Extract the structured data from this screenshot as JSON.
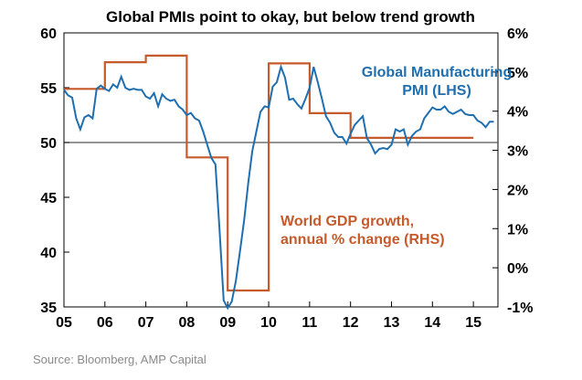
{
  "chart_data": {
    "type": "line",
    "title": "Global PMIs point to okay, but below trend growth",
    "xlabel": "",
    "ylabel_left": "",
    "ylabel_right": "",
    "x_ticks": [
      "05",
      "06",
      "07",
      "08",
      "09",
      "10",
      "11",
      "12",
      "13",
      "14",
      "15"
    ],
    "xlim": [
      2005,
      2015.6
    ],
    "ylim_left": [
      35,
      60
    ],
    "y_ticks_left": [
      "35",
      "40",
      "45",
      "50",
      "55",
      "60"
    ],
    "ylim_right": [
      -1,
      6
    ],
    "y_ticks_right": [
      "-1%",
      "0%",
      "1%",
      "2%",
      "3%",
      "4%",
      "5%",
      "6%"
    ],
    "reference_line_left": 50,
    "grid": false,
    "series": [
      {
        "name": "Global Manufacturing PMI (LHS)",
        "label": "Global Manufacturing\nPMI (LHS)",
        "axis": "left",
        "color": "#1f6fb0",
        "x": [
          2005.0,
          2005.1,
          2005.2,
          2005.3,
          2005.4,
          2005.5,
          2005.6,
          2005.7,
          2005.8,
          2005.9,
          2006.0,
          2006.1,
          2006.2,
          2006.3,
          2006.4,
          2006.5,
          2006.6,
          2006.7,
          2006.8,
          2006.9,
          2007.0,
          2007.1,
          2007.2,
          2007.3,
          2007.4,
          2007.5,
          2007.6,
          2007.7,
          2007.8,
          2007.9,
          2008.0,
          2008.1,
          2008.2,
          2008.3,
          2008.4,
          2008.5,
          2008.6,
          2008.7,
          2008.8,
          2008.9,
          2009.0,
          2009.1,
          2009.2,
          2009.3,
          2009.4,
          2009.5,
          2009.6,
          2009.7,
          2009.8,
          2009.9,
          2010.0,
          2010.1,
          2010.2,
          2010.3,
          2010.4,
          2010.5,
          2010.6,
          2010.7,
          2010.8,
          2010.9,
          2011.0,
          2011.1,
          2011.2,
          2011.3,
          2011.4,
          2011.5,
          2011.6,
          2011.7,
          2011.8,
          2011.9,
          2012.0,
          2012.1,
          2012.2,
          2012.3,
          2012.4,
          2012.5,
          2012.6,
          2012.7,
          2012.8,
          2012.9,
          2013.0,
          2013.1,
          2013.2,
          2013.3,
          2013.4,
          2013.5,
          2013.6,
          2013.7,
          2013.8,
          2013.9,
          2014.0,
          2014.1,
          2014.2,
          2014.3,
          2014.4,
          2014.5,
          2014.6,
          2014.7,
          2014.8,
          2014.9,
          2015.0,
          2015.1,
          2015.2,
          2015.3,
          2015.4,
          2015.5
        ],
        "values": [
          54.8,
          54.3,
          54.1,
          52.2,
          51.2,
          52.3,
          52.5,
          52.2,
          54.9,
          55.2,
          54.9,
          54.7,
          55.3,
          55.0,
          56.0,
          55.0,
          54.8,
          54.9,
          54.8,
          54.8,
          54.2,
          54.0,
          54.5,
          53.3,
          54.4,
          54.0,
          53.8,
          53.9,
          53.3,
          53.0,
          52.5,
          52.7,
          52.2,
          52.0,
          51.0,
          49.8,
          48.6,
          48.0,
          42.0,
          35.6,
          34.9,
          35.5,
          37.4,
          40.1,
          42.9,
          46.3,
          49.2,
          51.0,
          52.8,
          53.3,
          53.2,
          55.1,
          55.5,
          56.9,
          55.9,
          53.9,
          54.0,
          53.5,
          53.1,
          54.0,
          55.0,
          56.9,
          55.5,
          54.0,
          52.4,
          51.8,
          50.9,
          50.5,
          50.5,
          49.9,
          50.8,
          51.6,
          52.0,
          52.4,
          50.4,
          49.8,
          49.0,
          49.4,
          49.5,
          49.4,
          49.8,
          51.2,
          51.0,
          51.2,
          49.8,
          50.6,
          51.0,
          51.2,
          52.2,
          52.7,
          53.2,
          53.0,
          53.0,
          53.3,
          52.8,
          52.6,
          52.8,
          53.0,
          52.6,
          52.5,
          52.5,
          52.0,
          51.8,
          51.4,
          51.9,
          51.9
        ]
      },
      {
        "name": "World GDP growth, annual % change (RHS)",
        "label": "World GDP growth,\nannual % change (RHS)",
        "axis": "right",
        "color": "#c55a2b",
        "step": true,
        "x": [
          2005.0,
          2006.0,
          2006.0,
          2007.0,
          2007.0,
          2008.0,
          2008.0,
          2009.0,
          2009.0,
          2010.0,
          2010.0,
          2011.0,
          2011.0,
          2012.0,
          2012.0,
          2015.0
        ],
        "values": [
          4.57,
          4.57,
          5.25,
          5.25,
          5.42,
          5.42,
          2.82,
          2.82,
          -0.58,
          -0.58,
          5.22,
          5.22,
          3.95,
          3.95,
          3.32,
          3.32
        ]
      }
    ]
  },
  "source": "Source: Bloomberg, AMP Capital"
}
